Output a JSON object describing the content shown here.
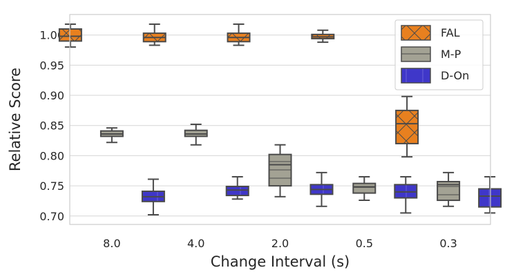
{
  "chart_data": {
    "type": "boxplot",
    "title": "",
    "xlabel": "Change Interval (s)",
    "ylabel": "Relative Score",
    "ylim": [
      0.686,
      1.034
    ],
    "yticks": [
      "0.70",
      "0.75",
      "0.80",
      "0.85",
      "0.90",
      "0.95",
      "1.00"
    ],
    "ytick_values": [
      0.7,
      0.75,
      0.8,
      0.85,
      0.9,
      0.95,
      1.0
    ],
    "categories": [
      "8.0",
      "4.0",
      "2.0",
      "0.5",
      "0.3"
    ],
    "grid": true,
    "legend_position": "top-right",
    "series": [
      {
        "name": "FAL",
        "color": "#e8801f",
        "hatch": "diagonal-cross",
        "boxes": [
          {
            "whislo": 0.98,
            "q1": 0.99,
            "med": 0.998,
            "q3": 1.01,
            "whishi": 1.018
          },
          {
            "whislo": 0.983,
            "q1": 0.989,
            "med": 0.996,
            "q3": 1.003,
            "whishi": 1.018
          },
          {
            "whislo": 0.983,
            "q1": 0.989,
            "med": 0.996,
            "q3": 1.003,
            "whishi": 1.018
          },
          {
            "whislo": 0.988,
            "q1": 0.994,
            "med": 0.997,
            "q3": 1.001,
            "whishi": 1.008
          },
          {
            "whislo": 0.798,
            "q1": 0.82,
            "med": 0.853,
            "q3": 0.875,
            "whishi": 0.898
          }
        ]
      },
      {
        "name": "M-P",
        "color": "#a3a294",
        "hatch": "horizontal",
        "boxes": [
          {
            "whislo": 0.822,
            "q1": 0.832,
            "med": 0.836,
            "q3": 0.841,
            "whishi": 0.846
          },
          {
            "whislo": 0.818,
            "q1": 0.832,
            "med": 0.836,
            "q3": 0.842,
            "whishi": 0.852
          },
          {
            "whislo": 0.732,
            "q1": 0.75,
            "med": 0.785,
            "q3": 0.802,
            "whishi": 0.818
          },
          {
            "whislo": 0.726,
            "q1": 0.738,
            "med": 0.748,
            "q3": 0.754,
            "whishi": 0.765
          },
          {
            "whislo": 0.716,
            "q1": 0.726,
            "med": 0.752,
            "q3": 0.757,
            "whishi": 0.772
          }
        ]
      },
      {
        "name": "D-On",
        "color": "#3f37c9",
        "hatch": "vertical",
        "boxes": [
          {
            "whislo": 0.702,
            "q1": 0.724,
            "med": 0.732,
            "q3": 0.741,
            "whishi": 0.761
          },
          {
            "whislo": 0.728,
            "q1": 0.734,
            "med": 0.743,
            "q3": 0.749,
            "whishi": 0.765
          },
          {
            "whislo": 0.716,
            "q1": 0.736,
            "med": 0.744,
            "q3": 0.752,
            "whishi": 0.772
          },
          {
            "whislo": 0.705,
            "q1": 0.73,
            "med": 0.74,
            "q3": 0.752,
            "whishi": 0.765
          },
          {
            "whislo": 0.705,
            "q1": 0.715,
            "med": 0.733,
            "q3": 0.745,
            "whishi": 0.765
          }
        ]
      }
    ]
  }
}
